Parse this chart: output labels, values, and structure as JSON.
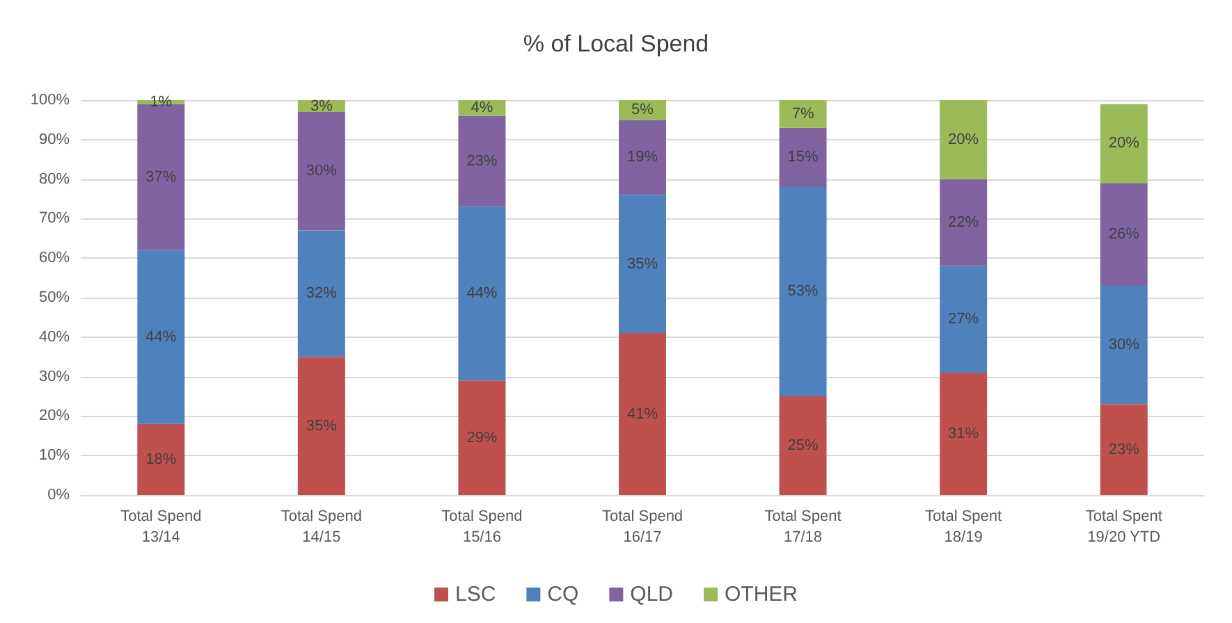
{
  "chart_data": {
    "type": "bar",
    "title": "% of Local Spend",
    "stacked": true,
    "grid": "y",
    "legend": "bottom",
    "categories": [
      "Total Spend\n13/14",
      "Total Spend\n14/15",
      "Total Spend\n15/16",
      "Total Spend\n16/17",
      "Total Spent\n17/18",
      "Total Spent\n18/19",
      "Total Spent\n19/20 YTD"
    ],
    "ylim": [
      0,
      100
    ],
    "yticks": [
      {
        "value": 0,
        "label": "0%"
      },
      {
        "value": 10,
        "label": "10%"
      },
      {
        "value": 20,
        "label": "20%"
      },
      {
        "value": 30,
        "label": "30%"
      },
      {
        "value": 40,
        "label": "40%"
      },
      {
        "value": 50,
        "label": "50%"
      },
      {
        "value": 60,
        "label": "60%"
      },
      {
        "value": 70,
        "label": "70%"
      },
      {
        "value": 80,
        "label": "80%"
      },
      {
        "value": 90,
        "label": "90%"
      },
      {
        "value": 100,
        "label": "100%"
      }
    ],
    "series": [
      {
        "name": "LSC",
        "color": "#c0504d",
        "values": [
          18,
          35,
          29,
          41,
          25,
          31,
          23
        ],
        "value_labels": [
          "18%",
          "35%",
          "29%",
          "41%",
          "25%",
          "31%",
          "23%"
        ]
      },
      {
        "name": "CQ",
        "color": "#4f81bd",
        "values": [
          44,
          32,
          44,
          35,
          53,
          27,
          30
        ],
        "value_labels": [
          "44%",
          "32%",
          "44%",
          "35%",
          "53%",
          "27%",
          "30%"
        ]
      },
      {
        "name": "QLD",
        "color": "#8064a2",
        "values": [
          37,
          30,
          23,
          19,
          15,
          22,
          26
        ],
        "value_labels": [
          "37%",
          "30%",
          "23%",
          "19%",
          "15%",
          "22%",
          "26%"
        ]
      },
      {
        "name": "OTHER",
        "color": "#9bbb59",
        "values": [
          1,
          3,
          4,
          5,
          7,
          20,
          20
        ],
        "value_labels": [
          "1%",
          "3%",
          "4%",
          "5%",
          "7%",
          "20%",
          "20%"
        ]
      }
    ]
  }
}
